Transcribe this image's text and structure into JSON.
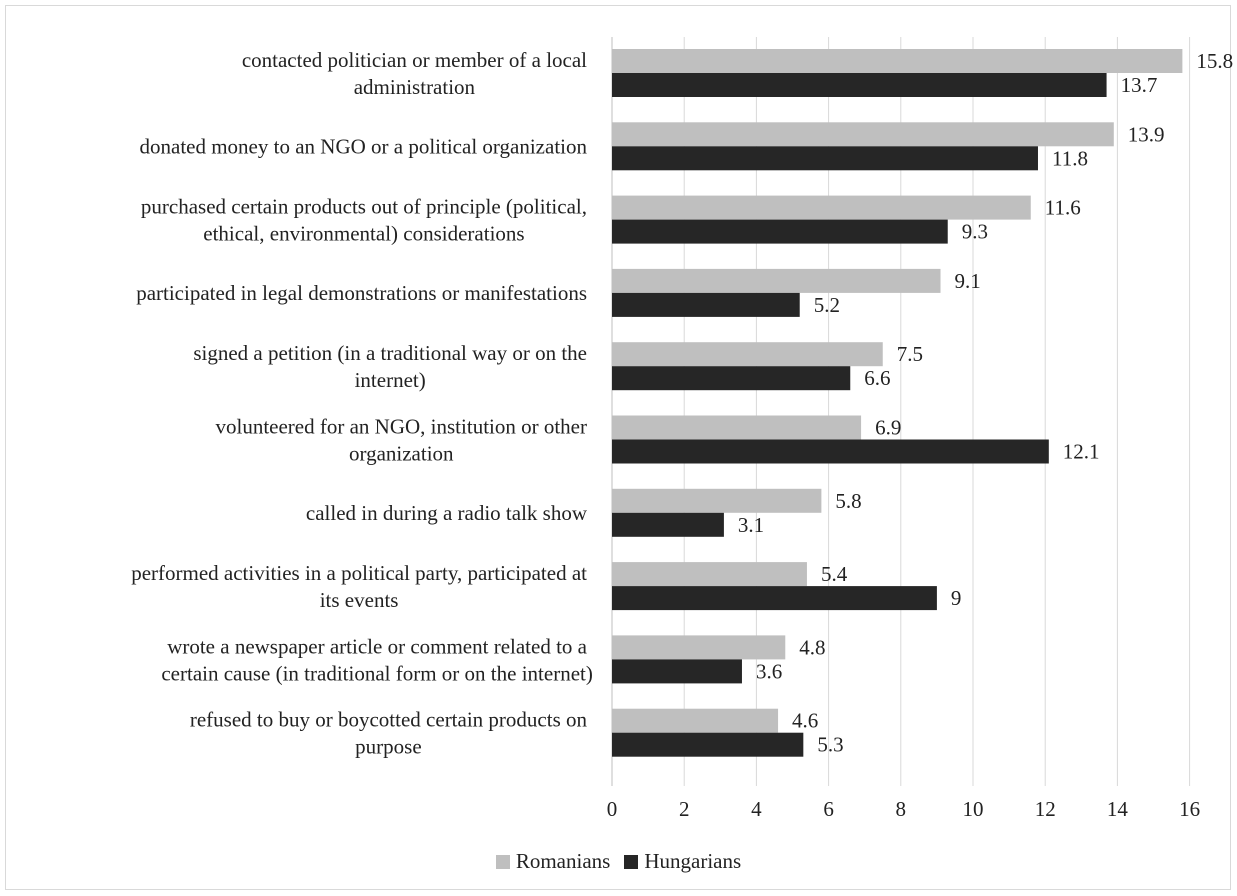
{
  "chart_data": {
    "type": "bar",
    "orientation": "horizontal",
    "categories": [
      [
        "contacted politician or member of a local",
        "administration"
      ],
      [
        "donated money to an NGO or a political organization"
      ],
      [
        "purchased certain products out of principle (political,",
        "ethical, environmental) considerations"
      ],
      [
        "participated in legal demonstrations or manifestations"
      ],
      [
        "signed a petition (in a traditional way or on the",
        "internet)"
      ],
      [
        "volunteered for an NGO, institution or other",
        "organization"
      ],
      [
        "called in during a radio talk show"
      ],
      [
        "performed activities in a political party, participated at",
        "its events"
      ],
      [
        "wrote a newspaper article or comment related to a",
        "certain cause (in traditional form or on the internet)"
      ],
      [
        "refused to buy or boycotted certain products on",
        "purpose"
      ]
    ],
    "series": [
      {
        "name": "Romanians",
        "color": "#bfbfbf",
        "values": [
          15.8,
          13.9,
          11.6,
          9.1,
          7.5,
          6.9,
          5.8,
          5.4,
          4.8,
          4.6
        ]
      },
      {
        "name": "Hungarians",
        "color": "#262626",
        "values": [
          13.7,
          11.8,
          9.3,
          5.2,
          6.6,
          12.1,
          3.1,
          9,
          3.6,
          5.3
        ]
      }
    ],
    "xlim": [
      0,
      16
    ],
    "xticks": [
      0,
      2,
      4,
      6,
      8,
      10,
      12,
      14,
      16
    ],
    "grid": true,
    "legend": "bottom"
  }
}
